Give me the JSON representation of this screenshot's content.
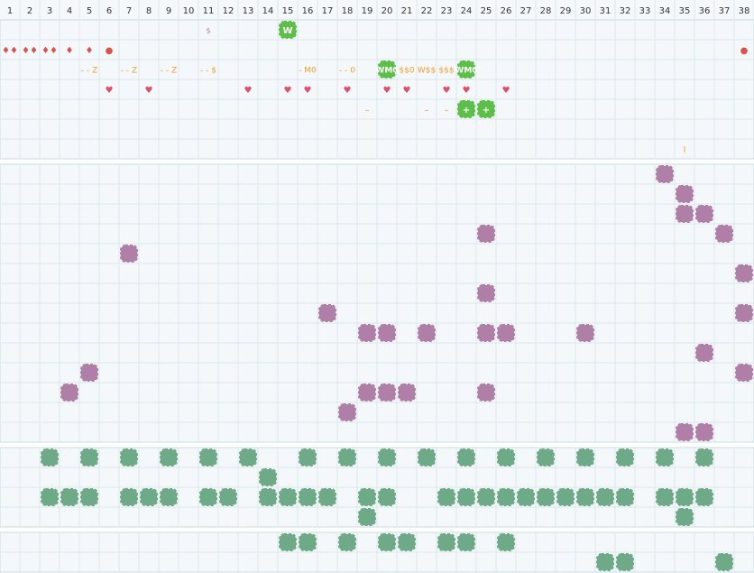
{
  "columns": [
    1,
    2,
    3,
    4,
    5,
    6,
    7,
    8,
    9,
    10,
    11,
    12,
    13,
    14,
    15,
    16,
    17,
    18,
    19,
    20,
    21,
    22,
    23,
    24,
    25,
    26,
    27,
    28,
    29,
    30,
    31,
    32,
    33,
    34,
    35,
    36,
    37,
    38
  ],
  "top_rows": [
    [
      {
        "col": 11,
        "text": "$",
        "style": "small"
      },
      {
        "col": 15,
        "text": "W",
        "style": "green"
      }
    ],
    [
      {
        "col": 1,
        "text": "♦♦",
        "style": "red"
      },
      {
        "col": 2,
        "text": "♦♦",
        "style": "red"
      },
      {
        "col": 3,
        "text": "♦♦",
        "style": "red"
      },
      {
        "col": 4,
        "text": "♦",
        "style": "red"
      },
      {
        "col": 5,
        "text": "♦",
        "style": "red"
      },
      {
        "col": 6,
        "text": "●",
        "style": "red"
      },
      {
        "col": 38,
        "text": "●",
        "style": "red"
      }
    ],
    [
      {
        "col": 5,
        "text": "- - Z",
        "style": "orange"
      },
      {
        "col": 7,
        "text": "- - Z",
        "style": "orange"
      },
      {
        "col": 9,
        "text": "- - Z",
        "style": "orange"
      },
      {
        "col": 11,
        "text": "- - $",
        "style": "orange"
      },
      {
        "col": 16,
        "text": "- M0",
        "style": "orange"
      },
      {
        "col": 18,
        "text": "- - 0",
        "style": "orange"
      },
      {
        "col": 20,
        "text": "WM0",
        "style": "green"
      },
      {
        "col": 21,
        "text": "$$0",
        "style": "orange"
      },
      {
        "col": 22,
        "text": "W$$",
        "style": "orange"
      },
      {
        "col": 23,
        "text": "$$$",
        "style": "orange"
      },
      {
        "col": 24,
        "text": "WM0",
        "style": "green"
      }
    ],
    [
      {
        "col": 6,
        "text": "♥",
        "style": "heart"
      },
      {
        "col": 8,
        "text": "♥",
        "style": "heart"
      },
      {
        "col": 13,
        "text": "♥",
        "style": "heart"
      },
      {
        "col": 15,
        "text": "♥",
        "style": "heart"
      },
      {
        "col": 16,
        "text": "♥",
        "style": "heart"
      },
      {
        "col": 18,
        "text": "♥",
        "style": "heart"
      },
      {
        "col": 20,
        "text": "♥",
        "style": "heart"
      },
      {
        "col": 21,
        "text": "♥",
        "style": "heart"
      },
      {
        "col": 23,
        "text": "♥",
        "style": "heart"
      },
      {
        "col": 24,
        "text": "♥",
        "style": "heart"
      },
      {
        "col": 26,
        "text": "♥",
        "style": "heart"
      }
    ],
    [
      {
        "col": 19,
        "text": "–",
        "style": "orange"
      },
      {
        "col": 22,
        "text": "–",
        "style": "orange"
      },
      {
        "col": 23,
        "text": "–",
        "style": "orange"
      },
      {
        "col": 24,
        "text": "+",
        "style": "green"
      },
      {
        "col": 25,
        "text": "+",
        "style": "green"
      }
    ],
    [],
    [
      {
        "col": 35,
        "text": "I",
        "style": "orange"
      }
    ]
  ],
  "purple_rows": [
    [
      34
    ],
    [
      35
    ],
    [
      35,
      36
    ],
    [
      25,
      37
    ],
    [
      7
    ],
    [
      38
    ],
    [
      25
    ],
    [
      17,
      38
    ],
    [
      19,
      20,
      22,
      25,
      26,
      30
    ],
    [
      36
    ],
    [
      5,
      38
    ],
    [
      4,
      19,
      20,
      21,
      25
    ],
    [
      18
    ],
    [
      35,
      36
    ]
  ],
  "green_rows": [
    [
      3,
      5,
      7,
      9,
      11,
      13,
      16,
      18,
      20,
      22,
      24,
      26,
      28,
      30,
      32,
      34,
      36
    ],
    [
      14
    ],
    [
      3,
      4,
      5,
      7,
      8,
      9,
      11,
      12,
      14,
      15,
      16,
      17,
      19,
      20,
      23,
      24,
      25,
      26,
      27,
      28,
      29,
      30,
      31,
      32,
      34,
      35,
      36
    ],
    [
      19,
      35
    ]
  ],
  "lower_rows": [
    [
      15,
      16,
      18,
      20,
      21,
      23,
      24,
      26
    ],
    [
      31,
      32,
      37
    ]
  ]
}
